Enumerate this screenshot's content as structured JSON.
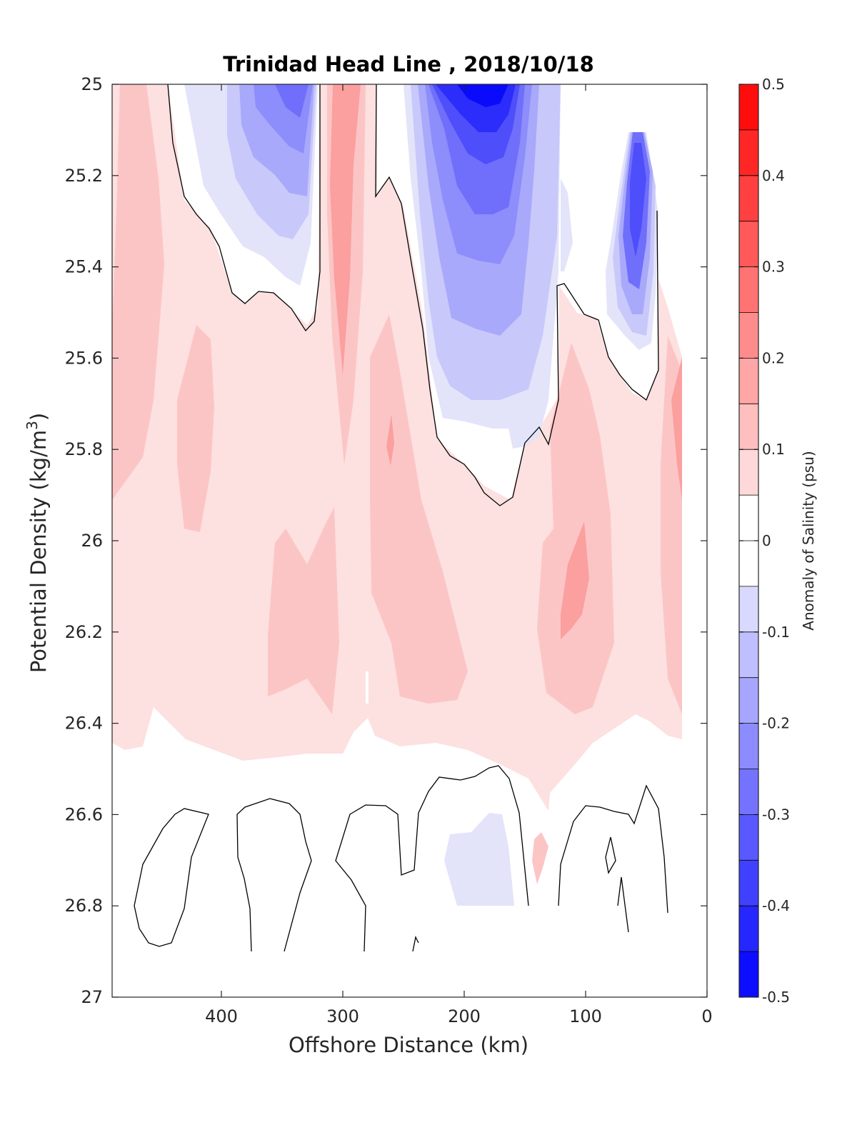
{
  "chart_data": {
    "type": "contour",
    "title": "Trinidad Head Line , 2018/10/18",
    "xlabel": "Offshore Distance (km)",
    "ylabel": "Potential Density (kg/m",
    "ylabel_superscript": "3",
    "ylabel_suffix": ")",
    "xlim": [
      490,
      0
    ],
    "x_reversed": true,
    "ylim": [
      25,
      27
    ],
    "y_reversed": true,
    "x_ticks": [
      400,
      300,
      200,
      100,
      0
    ],
    "x_tick_labels": [
      "400",
      "300",
      "200",
      "100",
      "0"
    ],
    "y_ticks": [
      25,
      25.2,
      25.4,
      25.6,
      25.8,
      26,
      26.2,
      26.4,
      26.6,
      26.8,
      27
    ],
    "y_tick_labels": [
      "25",
      "25.2",
      "25.4",
      "25.6",
      "25.8",
      "26",
      "26.2",
      "26.4",
      "26.6",
      "26.8",
      "27"
    ],
    "colorbar": {
      "label": "Anomaly of Salinity (psu)",
      "range": [
        -0.5,
        0.5
      ],
      "step": 0.05,
      "tick_values": [
        0.5,
        0.4,
        0.3,
        0.2,
        0.1,
        0,
        -0.1,
        -0.2,
        -0.3,
        -0.4,
        -0.5
      ],
      "tick_labels": [
        "0.5",
        "0.4",
        "0.3",
        "0.2",
        "0.1",
        "0",
        "-0.1",
        "-0.2",
        "-0.3",
        "-0.4",
        "-0.5"
      ],
      "colormap": "blue-white-red diverging"
    },
    "features": [
      {
        "sign": "positive",
        "peak": 0.2,
        "x_range": [
          490,
          0
        ],
        "y_range": [
          25.4,
          26.45
        ],
        "note": "broad positive anomaly layer"
      },
      {
        "sign": "negative",
        "peak": -0.45,
        "x_range": [
          235,
          120
        ],
        "y_range": [
          25,
          25.8
        ],
        "note": "strongest negative core near 180 km, 25.0-25.2"
      },
      {
        "sign": "negative",
        "peak": -0.3,
        "x_range": [
          430,
          325
        ],
        "y_range": [
          25,
          25.5
        ],
        "note": "negative core near 360 km"
      },
      {
        "sign": "negative",
        "peak": -0.35,
        "x_range": [
          85,
          40
        ],
        "y_range": [
          25.1,
          25.6
        ],
        "note": "negative core near 60 km"
      },
      {
        "sign": "positive",
        "peak": 0.2,
        "x_range": [
          320,
          280
        ],
        "y_range": [
          25,
          25.8
        ],
        "note": "positive vertical band near 300 km"
      },
      {
        "sign": "positive",
        "peak": 0.2,
        "x_range": [
          120,
          75
        ],
        "y_range": [
          25.95,
          26.25
        ],
        "note": "positive core near 110 km, 26.1"
      },
      {
        "sign": "positive",
        "peak": 0.2,
        "x_range": [
          30,
          20
        ],
        "y_range": [
          25.55,
          25.95
        ],
        "note": "positive near coast"
      },
      {
        "sign": "negative",
        "peak": -0.1,
        "x_range": [
          215,
          160
        ],
        "y_range": [
          26.6,
          26.8
        ],
        "note": "weak negative patch at depth"
      }
    ],
    "zero_contours": "black lines at anomaly = 0"
  }
}
